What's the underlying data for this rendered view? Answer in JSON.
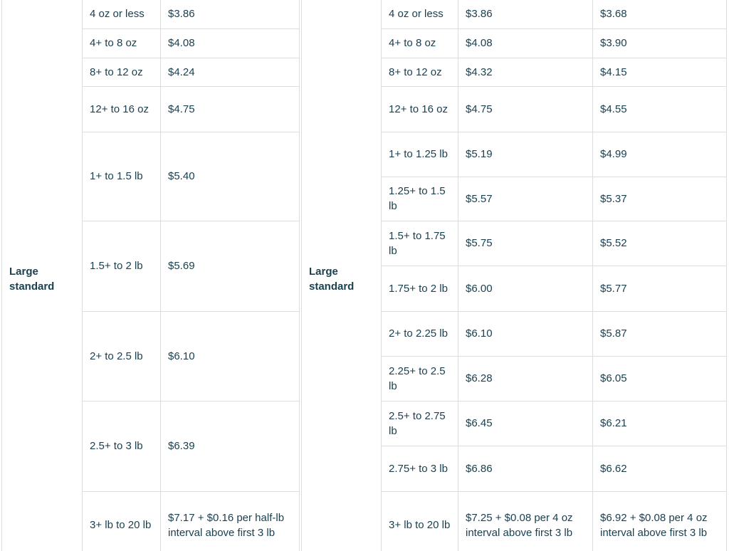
{
  "colors": {
    "background": "#ffffff",
    "cell_text": "#1b4050",
    "category_text": "#4d5358",
    "border": "#dcdddd"
  },
  "tables": [
    {
      "id": "left",
      "category_label": "Large standard",
      "fee_columns": 1,
      "rows": [
        {
          "weight": "4 oz or less",
          "fees": [
            "$3.86"
          ]
        },
        {
          "weight": "4+ to 8 oz",
          "fees": [
            "$4.08"
          ]
        },
        {
          "weight": "8+ to 12 oz",
          "fees": [
            "$4.24"
          ]
        },
        {
          "weight": "12+ to 16 oz",
          "fees": [
            "$4.75"
          ]
        },
        {
          "weight": "1+ to 1.5 lb",
          "fees": [
            "$5.40"
          ]
        },
        {
          "weight": "1.5+ to 2 lb",
          "fees": [
            "$5.69"
          ]
        },
        {
          "weight": "2+ to 2.5 lb",
          "fees": [
            "$6.10"
          ]
        },
        {
          "weight": "2.5+ to 3 lb",
          "fees": [
            "$6.39"
          ]
        },
        {
          "weight": "3+ lb to 20 lb",
          "fees": [
            "$7.17 + $0.16 per half-lb interval above first 3 lb"
          ]
        }
      ]
    },
    {
      "id": "right",
      "category_label": "Large standard",
      "fee_columns": 2,
      "rows": [
        {
          "weight": "4 oz or less",
          "fees": [
            "$3.86",
            "$3.68"
          ]
        },
        {
          "weight": "4+ to 8 oz",
          "fees": [
            "$4.08",
            "$3.90"
          ]
        },
        {
          "weight": "8+ to 12 oz",
          "fees": [
            "$4.32",
            "$4.15"
          ]
        },
        {
          "weight": "12+ to 16 oz",
          "fees": [
            "$4.75",
            "$4.55"
          ]
        },
        {
          "weight": "1+ to 1.25 lb",
          "fees": [
            "$5.19",
            "$4.99"
          ]
        },
        {
          "weight": "1.25+ to 1.5 lb",
          "fees": [
            "$5.57",
            "$5.37"
          ]
        },
        {
          "weight": "1.5+ to 1.75 lb",
          "fees": [
            "$5.75",
            "$5.52"
          ]
        },
        {
          "weight": "1.75+ to 2 lb",
          "fees": [
            "$6.00",
            "$5.77"
          ]
        },
        {
          "weight": "2+ to 2.25 lb",
          "fees": [
            "$6.10",
            "$5.87"
          ]
        },
        {
          "weight": "2.25+ to 2.5 lb",
          "fees": [
            "$6.28",
            "$6.05"
          ]
        },
        {
          "weight": "2.5+ to 2.75 lb",
          "fees": [
            "$6.45",
            "$6.21"
          ]
        },
        {
          "weight": "2.75+ to 3 lb",
          "fees": [
            "$6.86",
            "$6.62"
          ]
        },
        {
          "weight": "3+ lb to 20 lb",
          "fees": [
            "$7.25 + $0.08 per 4 oz interval above first 3 lb",
            "$6.92 + $0.08 per 4 oz interval above first 3 lb"
          ]
        }
      ]
    }
  ]
}
